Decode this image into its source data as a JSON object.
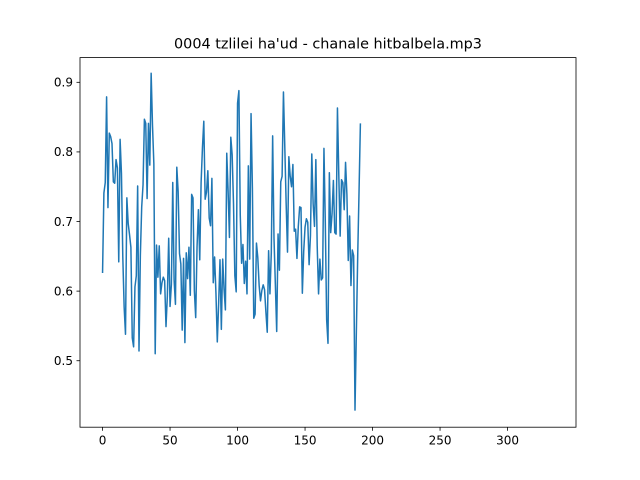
{
  "chart_data": {
    "type": "line",
    "title": "0004 tzlilei ha'ud - chanale hitbalbela.mp3",
    "xlabel": "",
    "ylabel": "",
    "xlim": [
      -16.7,
      350.7
    ],
    "ylim": [
      0.4045,
      0.9355
    ],
    "xticks": [
      0,
      50,
      100,
      150,
      200,
      250,
      300
    ],
    "yticks": [
      0.5,
      0.6,
      0.7,
      0.8,
      0.9
    ],
    "xtick_labels": [
      "0",
      "50",
      "100",
      "150",
      "200",
      "250",
      "300"
    ],
    "ytick_labels": [
      "0.5",
      "0.6",
      "0.7",
      "0.8",
      "0.9"
    ],
    "grid": false,
    "legend": "none",
    "line_color": "#1f77b4",
    "series": [
      {
        "values": [
          0.626,
          0.741,
          0.756,
          0.879,
          0.72,
          0.827,
          0.822,
          0.812,
          0.757,
          0.755,
          0.789,
          0.777,
          0.642,
          0.818,
          0.769,
          0.649,
          0.577,
          0.538,
          0.734,
          0.697,
          0.681,
          0.663,
          0.533,
          0.52,
          0.606,
          0.622,
          0.751,
          0.514,
          0.651,
          0.721,
          0.753,
          0.847,
          0.841,
          0.733,
          0.841,
          0.781,
          0.913,
          0.838,
          0.783,
          0.51,
          0.666,
          0.62,
          0.665,
          0.596,
          0.612,
          0.62,
          0.615,
          0.549,
          0.593,
          0.676,
          0.578,
          0.61,
          0.756,
          0.616,
          0.581,
          0.778,
          0.743,
          0.654,
          0.639,
          0.544,
          0.647,
          0.526,
          0.655,
          0.618,
          0.663,
          0.594,
          0.739,
          0.734,
          0.601,
          0.562,
          0.664,
          0.717,
          0.645,
          0.756,
          0.806,
          0.844,
          0.732,
          0.742,
          0.773,
          0.705,
          0.694,
          0.762,
          0.612,
          0.649,
          0.597,
          0.527,
          0.583,
          0.645,
          0.545,
          0.646,
          0.603,
          0.573,
          0.798,
          0.744,
          0.677,
          0.821,
          0.796,
          0.726,
          0.622,
          0.599,
          0.87,
          0.888,
          0.71,
          0.64,
          0.667,
          0.611,
          0.643,
          0.596,
          0.78,
          0.646,
          0.855,
          0.748,
          0.561,
          0.567,
          0.669,
          0.648,
          0.608,
          0.586,
          0.601,
          0.609,
          0.602,
          0.57,
          0.541,
          0.658,
          0.596,
          0.655,
          0.823,
          0.676,
          0.61,
          0.542,
          0.682,
          0.63,
          0.757,
          0.765,
          0.886,
          0.807,
          0.726,
          0.656,
          0.793,
          0.765,
          0.75,
          0.782,
          0.686,
          0.689,
          0.647,
          0.693,
          0.721,
          0.72,
          0.597,
          0.657,
          0.692,
          0.704,
          0.699,
          0.638,
          0.68,
          0.797,
          0.725,
          0.693,
          0.789,
          0.665,
          0.596,
          0.646,
          0.616,
          0.619,
          0.805,
          0.699,
          0.559,
          0.525,
          0.77,
          0.684,
          0.711,
          0.759,
          0.684,
          0.682,
          0.863,
          0.767,
          0.679,
          0.76,
          0.756,
          0.717,
          0.785,
          0.739,
          0.644,
          0.708,
          0.608,
          0.659,
          0.651,
          0.429,
          0.541,
          0.65,
          0.744,
          0.841
        ]
      }
    ]
  }
}
